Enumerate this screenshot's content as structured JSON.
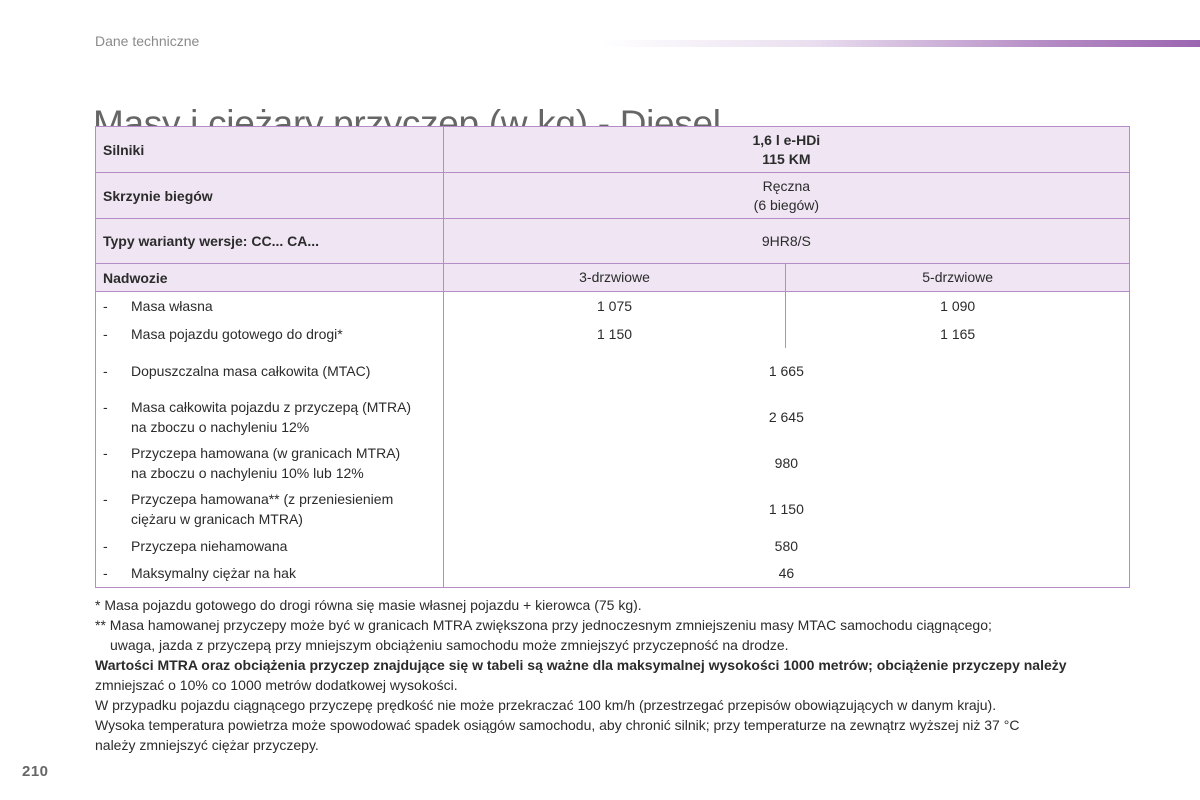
{
  "header": {
    "section": "Dane techniczne",
    "title": "Masy i ciężary przyczep (w kg) - Diesel"
  },
  "table": {
    "engine_label": "Silniki",
    "engine_value_line1": "1,6 l e-HDi",
    "engine_value_line2": "115 KM",
    "gearbox_label": "Skrzynie biegów",
    "gearbox_value_line1": "Ręczna",
    "gearbox_value_line2": "(6 biegów)",
    "type_label": "Typy warianty wersje: CC... CA...",
    "type_value": "9HR8/S",
    "body_label": "Nadwozie",
    "body_col1": "3-drzwiowe",
    "body_col2": "5-drzwiowe",
    "rows": [
      {
        "dash": "-",
        "label": "Masa własna",
        "col1": "1 075",
        "col2": "1 090"
      },
      {
        "dash": "-",
        "label": "Masa pojazdu gotowego do drogi*",
        "col1": "1 150",
        "col2": "1 165"
      },
      {
        "dash": "-",
        "label": "Dopuszczalna masa całkowita (MTAC)",
        "value": "1 665"
      },
      {
        "dash": "-",
        "label_line1": "Masa całkowita pojazdu z przyczepą (MTRA)",
        "label_line2": "na zboczu o nachyleniu 12%",
        "value": "2 645"
      },
      {
        "dash": "-",
        "label_line1": "Przyczepa hamowana (w granicach MTRA)",
        "label_line2": "na zboczu o nachyleniu 10% lub 12%",
        "value": "980"
      },
      {
        "dash": "-",
        "label_line1": "Przyczepa hamowana** (z przeniesieniem",
        "label_line2": "ciężaru w granicach MTRA)",
        "value": "1 150"
      },
      {
        "dash": "-",
        "label": "Przyczepa niehamowana",
        "value": "580"
      },
      {
        "dash": "-",
        "label": "Maksymalny ciężar na hak",
        "value": "46"
      }
    ]
  },
  "footnotes": {
    "note1": "* Masa pojazdu gotowego do drogi równa się masie własnej pojazdu + kierowca (75 kg).",
    "note2_line1": "** Masa hamowanej przyczepy może być w granicach MTRA zwiększona przy jednoczesnym zmniejszeniu masy MTAC samochodu ciągnącego;",
    "note2_line2": "uwaga, jazda z przyczepą przy mniejszym obciążeniu samochodu może zmniejszyć przyczepność na drodze.",
    "note3_bold": "Wartości MTRA oraz obciążenia przyczep znajdujące się w tabeli są ważne dla maksymalnej wysokości 1000 metrów; obciążenie przyczepy należy",
    "note3_rest": "zmniejszać o 10% co 1000 metrów dodatkowej wysokości.",
    "note4": "W przypadku pojazdu ciągnącego przyczepę prędkość nie może przekraczać 100 km/h (przestrzegać przepisów obowiązujących w danym kraju).",
    "note5_line1": "Wysoka temperatura powietrza może spowodować spadek osiągów samochodu, aby chronić silnik; przy temperaturze na zewnątrz wyższej niż 37 °C",
    "note5_line2": "należy zmniejszyć ciężar przyczepy."
  },
  "page_number": "210"
}
